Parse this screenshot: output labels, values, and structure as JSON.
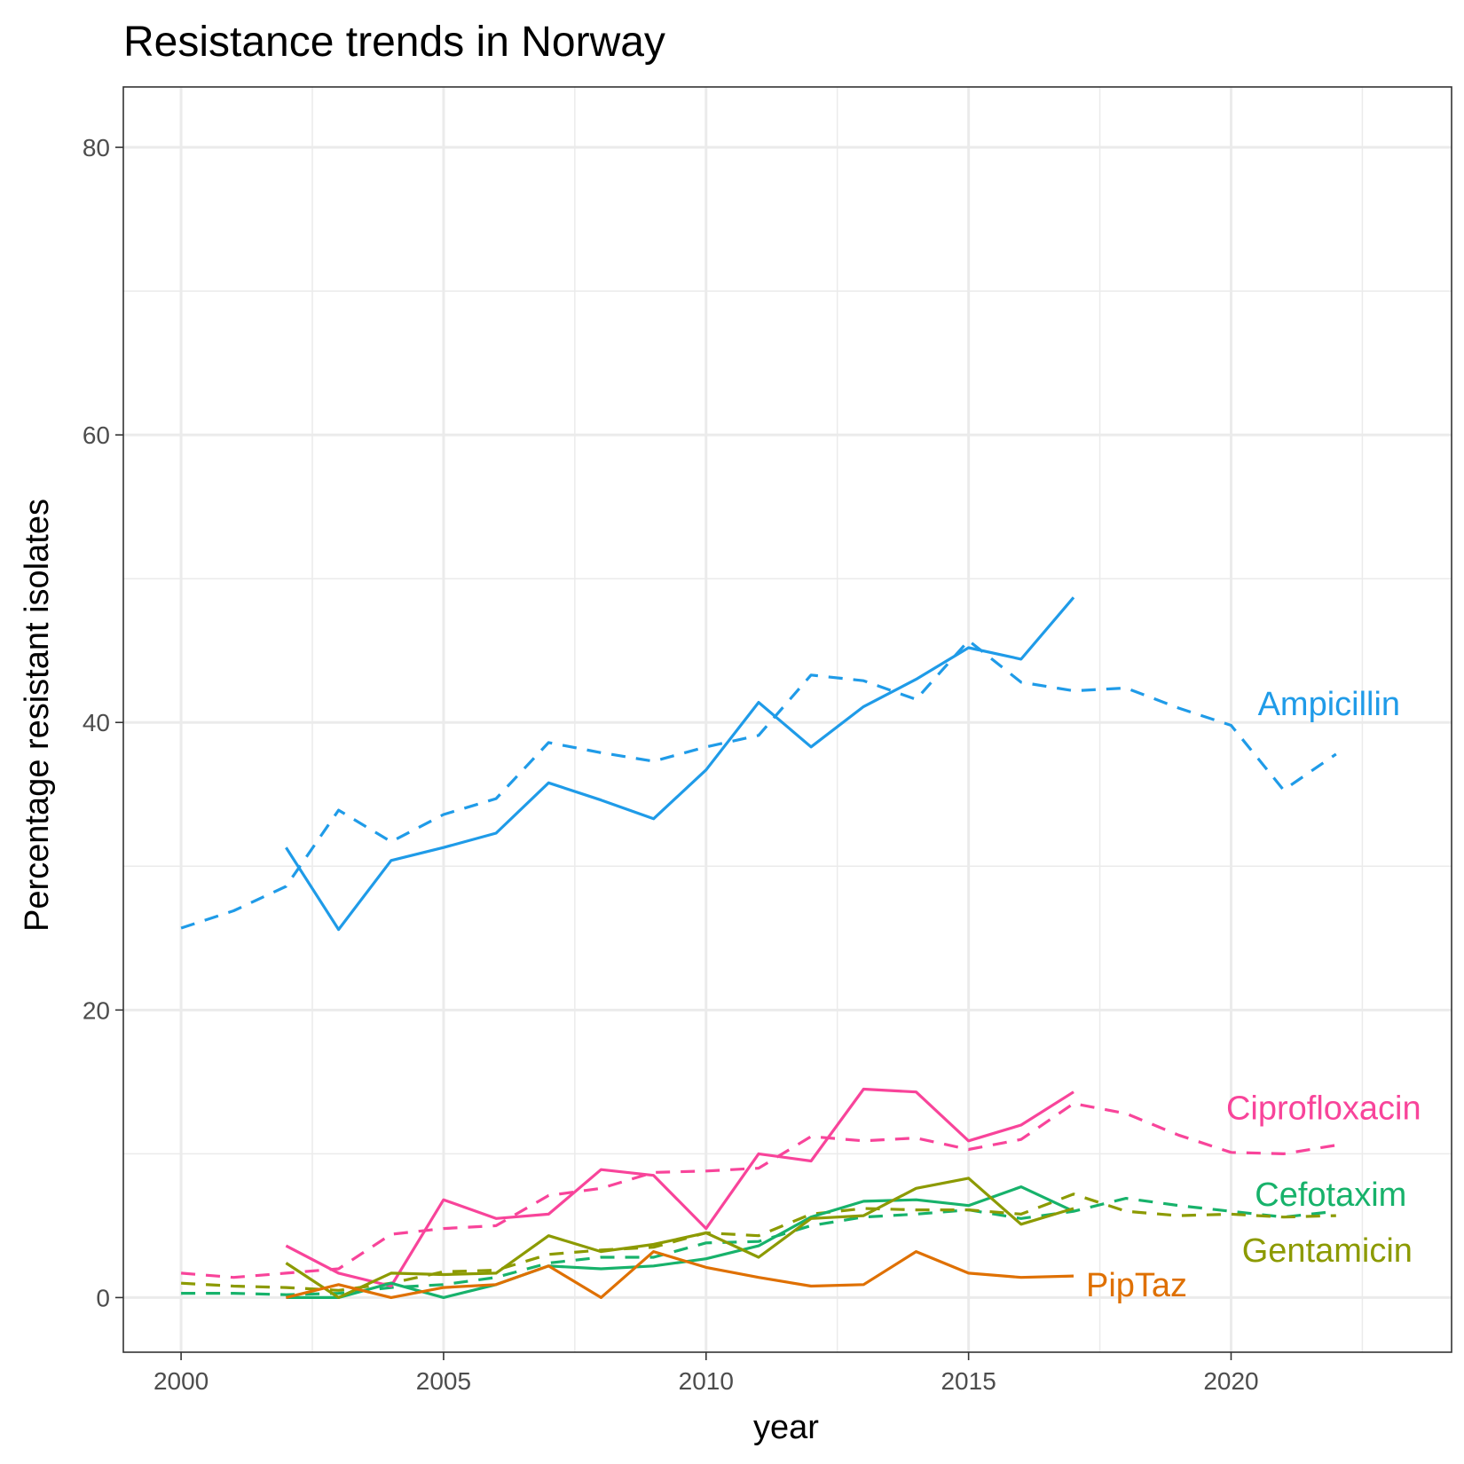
{
  "chart_data": {
    "type": "line",
    "title": "Resistance trends in Norway",
    "xlabel": "year",
    "ylabel": "Percentage resistant isolates",
    "xlim": [
      1998.9,
      2024.2
    ],
    "ylim": [
      -3.8,
      84.2
    ],
    "x_ticks": [
      2000,
      2005,
      2010,
      2015,
      2020
    ],
    "y_ticks": [
      0,
      20,
      40,
      60,
      80
    ],
    "grid": true,
    "legend": "direct labels at right end of lines",
    "line_styles": {
      "solid": "solid line",
      "dashed": "dashed line"
    },
    "series": [
      {
        "name": "Ampicillin",
        "color": "#1F9BE8",
        "solid": {
          "x": [
            2002,
            2003,
            2004,
            2005,
            2006,
            2007,
            2008,
            2009,
            2010,
            2011,
            2012,
            2013,
            2014,
            2015,
            2016,
            2017
          ],
          "y": [
            31.3,
            25.6,
            30.4,
            31.3,
            32.3,
            35.8,
            34.6,
            33.3,
            36.7,
            41.4,
            38.3,
            41.1,
            43.0,
            45.2,
            44.4,
            48.7
          ]
        },
        "dashed": {
          "x": [
            2000,
            2001,
            2002,
            2003,
            2004,
            2005,
            2006,
            2007,
            2008,
            2009,
            2010,
            2011,
            2012,
            2013,
            2014,
            2015,
            2016,
            2017,
            2018,
            2019,
            2020,
            2021,
            2022
          ],
          "y": [
            25.7,
            26.9,
            28.6,
            33.9,
            31.7,
            33.6,
            34.7,
            38.6,
            37.9,
            37.3,
            38.3,
            39.1,
            43.3,
            42.9,
            41.6,
            45.7,
            42.8,
            42.2,
            42.4,
            41.0,
            39.8,
            35.3,
            37.8
          ]
        }
      },
      {
        "name": "Ciprofloxacin",
        "color": "#F8449A",
        "solid": {
          "x": [
            2002,
            2003,
            2004,
            2005,
            2006,
            2007,
            2008,
            2009,
            2010,
            2011,
            2012,
            2013,
            2014,
            2015,
            2016,
            2017
          ],
          "y": [
            3.6,
            1.7,
            0.8,
            6.8,
            5.5,
            5.8,
            8.9,
            8.5,
            4.8,
            10.0,
            9.5,
            14.5,
            14.3,
            10.9,
            12.0,
            14.3
          ]
        },
        "dashed": {
          "x": [
            2000,
            2001,
            2002,
            2003,
            2004,
            2005,
            2006,
            2007,
            2008,
            2009,
            2010,
            2011,
            2012,
            2013,
            2014,
            2015,
            2016,
            2017,
            2018,
            2019,
            2020,
            2021,
            2022
          ],
          "y": [
            1.7,
            1.4,
            1.7,
            2.0,
            4.4,
            4.8,
            5.0,
            7.1,
            7.6,
            8.7,
            8.8,
            9.0,
            11.2,
            10.9,
            11.1,
            10.3,
            11.0,
            13.5,
            12.8,
            11.3,
            10.1,
            10.0,
            10.6
          ]
        }
      },
      {
        "name": "Cefotaxim",
        "color": "#17B26B",
        "solid": {
          "x": [
            2002,
            2003,
            2004,
            2005,
            2006,
            2007,
            2008,
            2009,
            2010,
            2011,
            2012,
            2013,
            2014,
            2015,
            2016,
            2017
          ],
          "y": [
            0.0,
            0.0,
            1.0,
            0.0,
            0.9,
            2.2,
            2.0,
            2.2,
            2.7,
            3.6,
            5.6,
            6.7,
            6.8,
            6.4,
            7.7,
            6.0
          ]
        },
        "dashed": {
          "x": [
            2000,
            2001,
            2002,
            2003,
            2004,
            2005,
            2006,
            2007,
            2008,
            2009,
            2010,
            2011,
            2012,
            2013,
            2014,
            2015,
            2016,
            2017,
            2018,
            2019,
            2020,
            2021,
            2022
          ],
          "y": [
            0.3,
            0.3,
            0.2,
            0.3,
            0.7,
            0.9,
            1.4,
            2.4,
            2.8,
            2.8,
            3.8,
            3.9,
            5.0,
            5.6,
            5.8,
            6.1,
            5.5,
            6.0,
            6.9,
            6.4,
            6.0,
            5.6,
            6.0
          ]
        }
      },
      {
        "name": "Gentamicin",
        "color": "#8C9A00",
        "solid": {
          "x": [
            2002,
            2003,
            2004,
            2005,
            2006,
            2007,
            2008,
            2009,
            2010,
            2011,
            2012,
            2013,
            2014,
            2015,
            2016,
            2017
          ],
          "y": [
            2.4,
            0.0,
            1.7,
            1.6,
            1.7,
            4.3,
            3.2,
            3.7,
            4.5,
            2.8,
            5.5,
            5.7,
            7.6,
            8.3,
            5.1,
            6.2
          ]
        },
        "dashed": {
          "x": [
            2000,
            2001,
            2002,
            2003,
            2004,
            2005,
            2006,
            2007,
            2008,
            2009,
            2010,
            2011,
            2012,
            2013,
            2014,
            2015,
            2016,
            2017,
            2018,
            2019,
            2020,
            2021,
            2022
          ],
          "y": [
            1.0,
            0.8,
            0.7,
            0.5,
            1.0,
            1.8,
            1.9,
            3.0,
            3.3,
            3.5,
            4.5,
            4.3,
            5.8,
            6.2,
            6.1,
            6.1,
            5.8,
            7.2,
            6.0,
            5.7,
            5.8,
            5.6,
            5.7
          ]
        }
      },
      {
        "name": "PipTaz",
        "color": "#DF7000",
        "solid": {
          "x": [
            2002,
            2003,
            2004,
            2005,
            2006,
            2007,
            2008,
            2009,
            2010,
            2011,
            2012,
            2013,
            2014,
            2015,
            2016,
            2017
          ],
          "y": [
            0.0,
            0.9,
            0.0,
            0.7,
            0.9,
            2.2,
            0.0,
            3.2,
            2.1,
            1.4,
            0.8,
            0.9,
            3.2,
            1.7,
            1.4,
            1.5
          ]
        }
      }
    ]
  }
}
